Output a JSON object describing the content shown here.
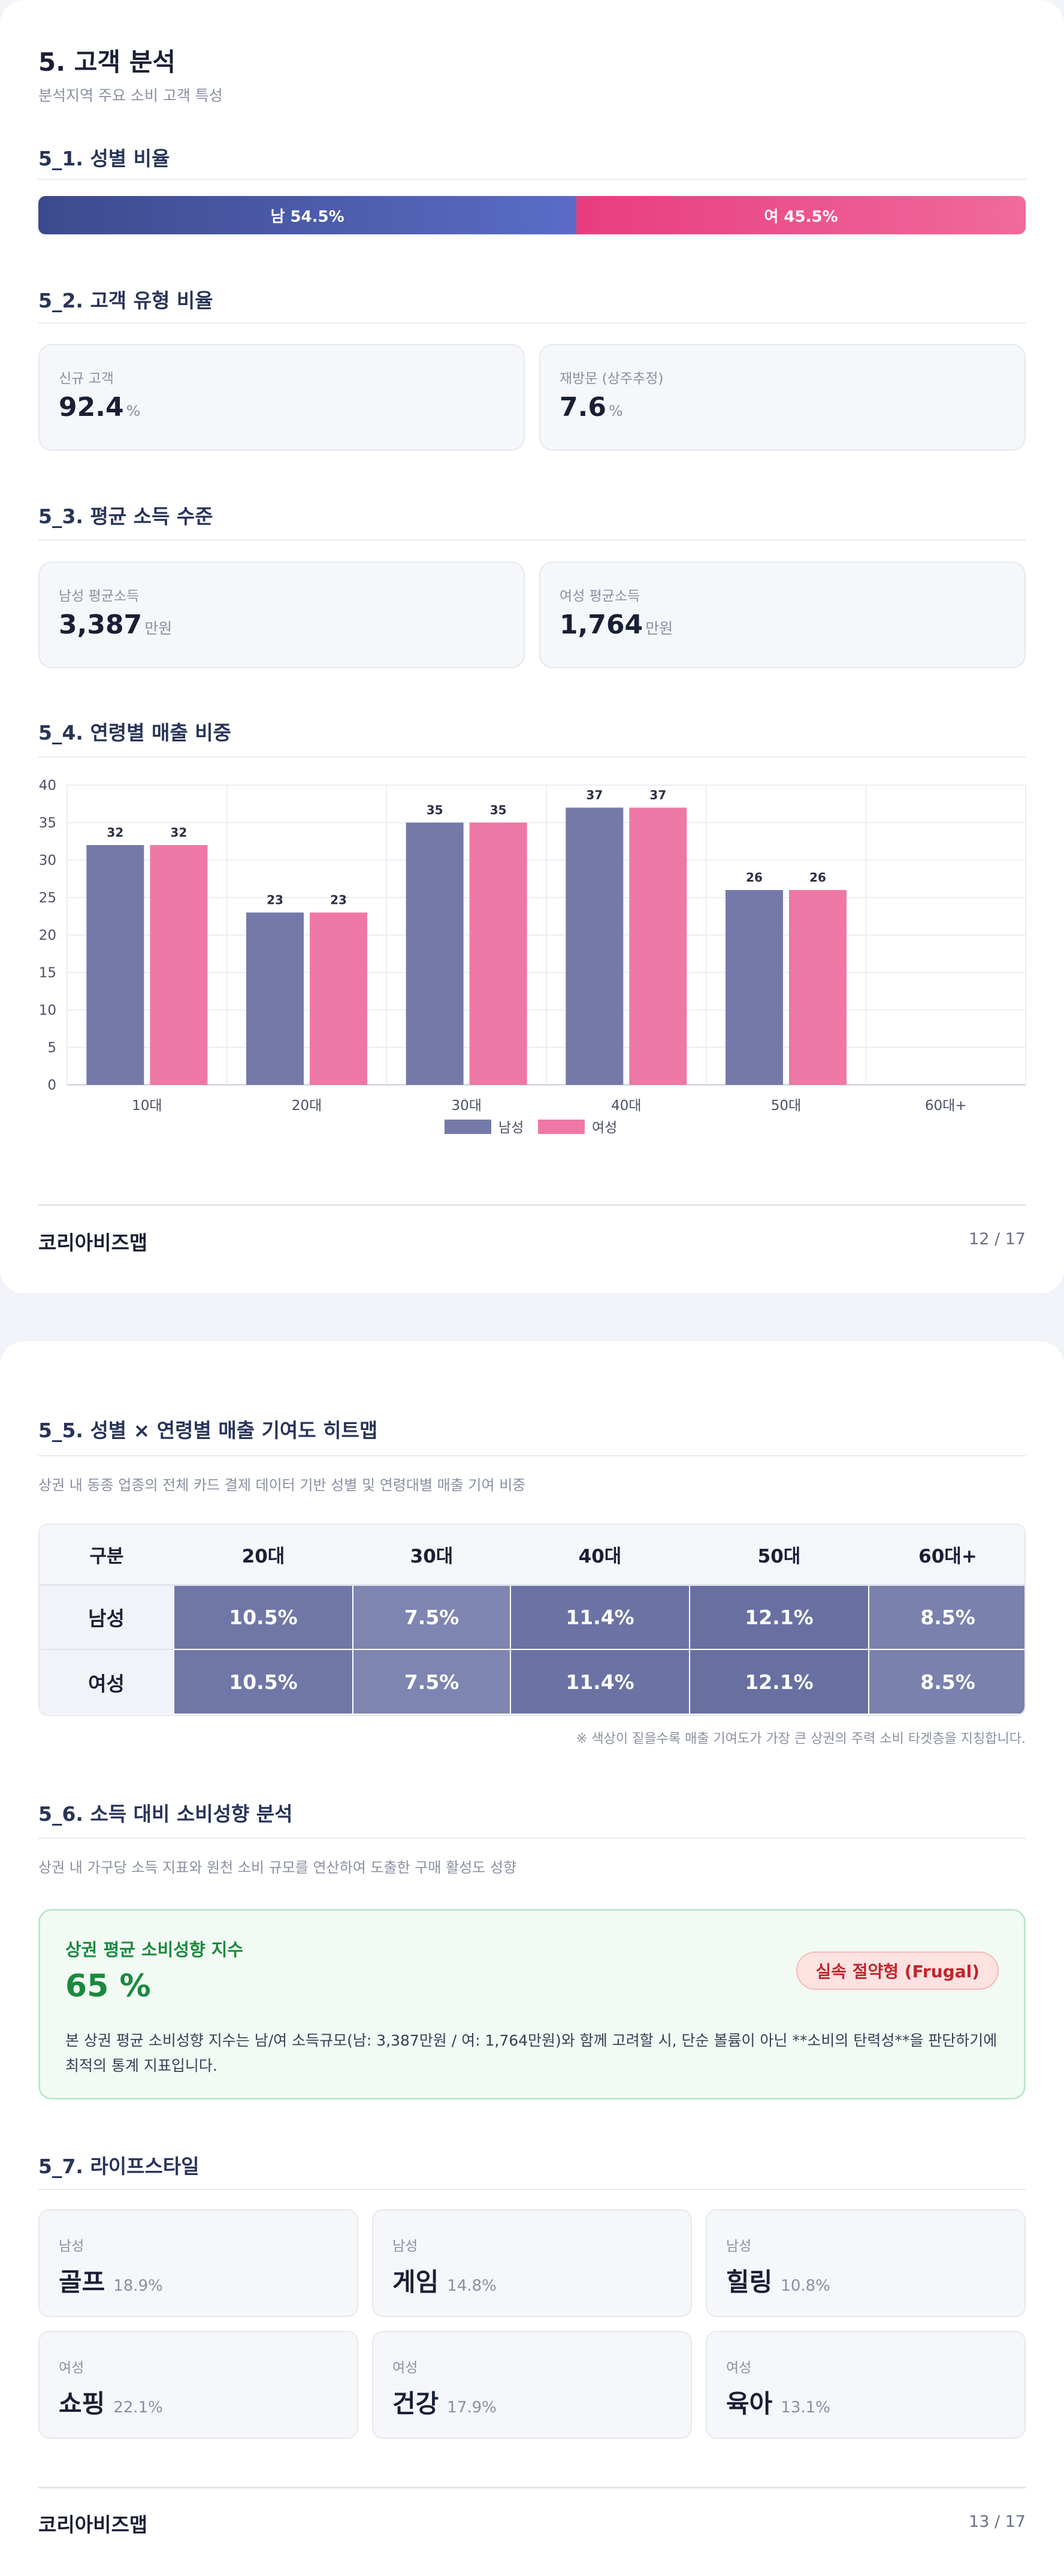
{
  "page1": {
    "title": "5. 고객 분석",
    "subtitle": "분석지역 주요 소비 고객 특성",
    "gender_section_title": "5_1. 성별 비율",
    "gender_ratio": {
      "male_label": "남 54.5%",
      "male_pct": 54.5,
      "female_label": "여 45.5%",
      "female_pct": 45.5
    },
    "customer_type": {
      "section_title": "5_2. 고객 유형 비율",
      "new_label": "신규 고객",
      "new_value": "92.4",
      "new_unit": "%",
      "return_label": "재방문 (상주추정)",
      "return_value": "7.6",
      "return_unit": "%"
    },
    "income": {
      "section_title": "5_3. 평균 소득 수준",
      "male_label": "남성 평균소득",
      "male_value": "3,387",
      "male_unit": "만원",
      "female_label": "여성 평균소득",
      "female_value": "1,764",
      "female_unit": "만원"
    },
    "age_section_title": "5_4. 연령별 매출 비중",
    "footer_brand": "코리아비즈맵",
    "footer_page": "12 / 17"
  },
  "chart_data": {
    "type": "bar",
    "categories": [
      "10대",
      "20대",
      "30대",
      "40대",
      "50대",
      "60대+"
    ],
    "series": [
      {
        "name": "남성",
        "values": [
          32,
          23,
          35,
          37,
          26,
          null
        ],
        "color": "#7479a9"
      },
      {
        "name": "여성",
        "values": [
          32,
          23,
          35,
          37,
          26,
          null
        ],
        "color": "#ee78a5"
      }
    ],
    "data_labels": [
      "32",
      "32",
      "23",
      "23",
      "35",
      "35",
      "37",
      "37",
      "26",
      "26"
    ],
    "yticks": [
      "0",
      "5",
      "10",
      "15",
      "20",
      "25",
      "30",
      "35",
      "40"
    ],
    "ylim": [
      0,
      40
    ],
    "grid": true,
    "legend_position": "bottom-center"
  },
  "page2": {
    "heatmap": {
      "section_title": "5_5. 성별 × 연령별 매출 기여도 히트맵",
      "description": "상권 내 동종 업종의 전체 카드 결제 데이터 기반 성별 및 연령대별 매출 기여 비중",
      "header_label": "구분",
      "columns": [
        "20대",
        "30대",
        "40대",
        "50대",
        "60대+"
      ],
      "rows": [
        {
          "label": "남성",
          "cells": [
            "10.5%",
            "7.5%",
            "11.4%",
            "12.1%",
            "8.5%"
          ],
          "values": [
            10.5,
            7.5,
            11.4,
            12.1,
            8.5
          ]
        },
        {
          "label": "여성",
          "cells": [
            "10.5%",
            "7.5%",
            "11.4%",
            "12.1%",
            "8.5%"
          ],
          "values": [
            10.5,
            7.5,
            11.4,
            12.1,
            8.5
          ]
        }
      ],
      "note": "※ 색상이 짙을수록 매출 기여도가 가장 큰 상권의 주력 소비 타겟층을 지칭합니다.",
      "cell_color": "#3e4888"
    },
    "propensity": {
      "section_title": "5_6. 소득 대비 소비성향 분석",
      "description": "상권 내 가구당 소득 지표와 원천 소비 규모를 연산하여 도출한 구매 활성도 성향",
      "box_title": "상권 평균 소비성향 지수",
      "value": "65 %",
      "badge": "실속 절약형 (Frugal)",
      "text": "본 상권 평균 소비성향 지수는 남/여 소득규모(남: 3,387만원 / 여: 1,764만원)와 함께 고려할 시, 단순 볼륨이 아닌 **소비의 탄력성**을 판단하기에 최적의 통계 지표입니다."
    },
    "lifestyle": {
      "section_title": "5_7. 라이프스타일",
      "items": [
        {
          "gender": "남성",
          "name": "골프",
          "pct": "18.9%"
        },
        {
          "gender": "남성",
          "name": "게임",
          "pct": "14.8%"
        },
        {
          "gender": "남성",
          "name": "힐링",
          "pct": "10.8%"
        },
        {
          "gender": "여성",
          "name": "쇼핑",
          "pct": "22.1%"
        },
        {
          "gender": "여성",
          "name": "건강",
          "pct": "17.9%"
        },
        {
          "gender": "여성",
          "name": "육아",
          "pct": "13.1%"
        }
      ]
    },
    "footer_brand": "코리아비즈맵",
    "footer_page": "13 / 17"
  }
}
